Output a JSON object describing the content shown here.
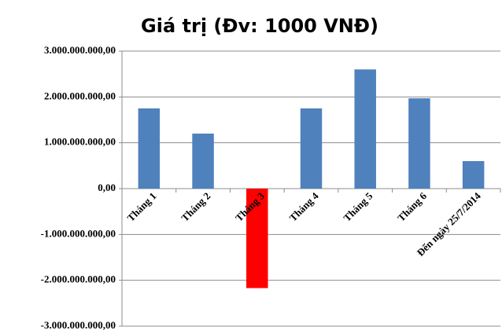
{
  "chart_data": {
    "type": "bar",
    "title": "Giá trị (Đv: 1000 VNĐ)",
    "categories": [
      "Tháng 1",
      "Tháng 2",
      "Tháng 3",
      "Tháng 4",
      "Tháng 5",
      "Tháng 6",
      "Đến ngày 25/7/2014"
    ],
    "values": [
      1750000000,
      1200000000,
      -2170000000,
      1750000000,
      2600000000,
      1970000000,
      600000000
    ],
    "colors": [
      "#4f81bd",
      "#4f81bd",
      "#ff0000",
      "#4f81bd",
      "#4f81bd",
      "#4f81bd",
      "#4f81bd"
    ],
    "ylim": [
      -3000000000,
      3000000000
    ],
    "yticks": [
      {
        "value": -3000000000,
        "label": "-3.000.000.000,00"
      },
      {
        "value": -2000000000,
        "label": "-2.000.000.000,00"
      },
      {
        "value": -1000000000,
        "label": "-1.000.000.000,00"
      },
      {
        "value": 0,
        "label": "0,00"
      },
      {
        "value": 1000000000,
        "label": "1.000.000.000,00"
      },
      {
        "value": 2000000000,
        "label": "2.000.000.000,00"
      },
      {
        "value": 3000000000,
        "label": "3.000.000.000,00"
      }
    ],
    "grid": true
  }
}
